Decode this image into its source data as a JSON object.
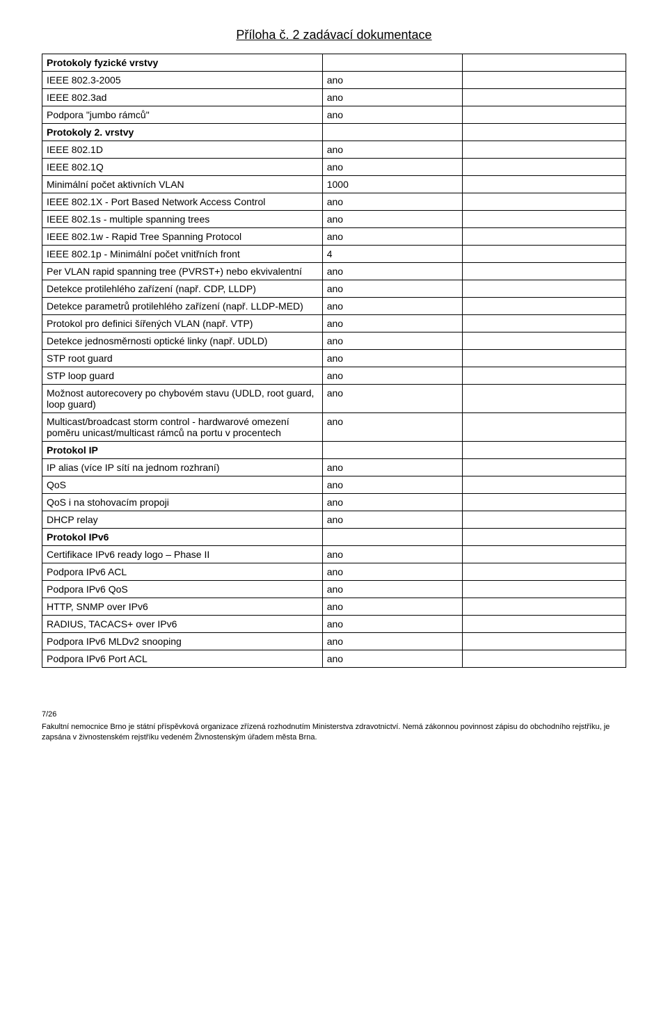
{
  "title": "Příloha č. 2 zadávací dokumentace",
  "table": {
    "col_widths": [
      "48%",
      "24%",
      "28%"
    ],
    "rows": [
      {
        "section": true,
        "c1": "Protokoly fyzické vrstvy",
        "c2": "",
        "c3": ""
      },
      {
        "c1": "IEEE 802.3-2005",
        "c2": "ano",
        "c3": ""
      },
      {
        "c1": "IEEE 802.3ad",
        "c2": "ano",
        "c3": ""
      },
      {
        "c1": "Podpora \"jumbo rámců\"",
        "c2": "ano",
        "c3": ""
      },
      {
        "section": true,
        "c1": "Protokoly 2. vrstvy",
        "c2": "",
        "c3": ""
      },
      {
        "c1": "IEEE 802.1D",
        "c2": "ano",
        "c3": ""
      },
      {
        "c1": "IEEE 802.1Q",
        "c2": "ano",
        "c3": ""
      },
      {
        "c1": "Minimální počet aktivních VLAN",
        "c2": "1000",
        "c3": ""
      },
      {
        "c1": "IEEE 802.1X - Port Based Network Access Control",
        "c2": "ano",
        "c3": ""
      },
      {
        "c1": "IEEE 802.1s - multiple spanning trees",
        "c2": "ano",
        "c3": ""
      },
      {
        "c1": "IEEE 802.1w - Rapid Tree Spanning Protocol",
        "c2": "ano",
        "c3": ""
      },
      {
        "c1": "IEEE 802.1p - Minimální počet vnitřních front",
        "c2": "4",
        "c3": ""
      },
      {
        "c1": "Per VLAN rapid spanning tree (PVRST+) nebo ekvivalentní",
        "c2": "ano",
        "c3": ""
      },
      {
        "c1": "Detekce protilehlého zařízení (např. CDP, LLDP)",
        "c2": "ano",
        "c3": ""
      },
      {
        "c1": "Detekce parametrů protilehlého zařízení (např. LLDP-MED)",
        "c2": "ano",
        "c3": ""
      },
      {
        "c1": "Protokol pro definici šířených VLAN (např. VTP)",
        "c2": "ano",
        "c3": ""
      },
      {
        "c1": "Detekce jednosměrnosti optické linky (např. UDLD)",
        "c2": "ano",
        "c3": ""
      },
      {
        "c1": "STP root guard",
        "c2": "ano",
        "c3": ""
      },
      {
        "c1": "STP loop guard",
        "c2": "ano",
        "c3": ""
      },
      {
        "c1": "Možnost autorecovery po chybovém stavu (UDLD, root guard, loop guard)",
        "c2": "ano",
        "c3": ""
      },
      {
        "c1": "Multicast/broadcast storm control - hardwarové omezení poměru unicast/multicast rámců na portu v procentech",
        "c2": "ano",
        "c3": ""
      },
      {
        "section": true,
        "c1": "Protokol IP",
        "c2": "",
        "c3": ""
      },
      {
        "c1": "IP alias (více IP sítí na jednom rozhraní)",
        "c2": "ano",
        "c3": ""
      },
      {
        "c1": "QoS",
        "c2": "ano",
        "c3": ""
      },
      {
        "c1": "QoS i na stohovacím propoji",
        "c2": "ano",
        "c3": ""
      },
      {
        "c1": "DHCP relay",
        "c2": "ano",
        "c3": ""
      },
      {
        "section": true,
        "c1": "Protokol IPv6",
        "c2": "",
        "c3": ""
      },
      {
        "c1": "Certifikace IPv6 ready logo – Phase II",
        "c2": "ano",
        "c3": ""
      },
      {
        "c1": "Podpora IPv6 ACL",
        "c2": "ano",
        "c3": ""
      },
      {
        "c1": "Podpora IPv6 QoS",
        "c2": "ano",
        "c3": ""
      },
      {
        "c1": "HTTP, SNMP over IPv6",
        "c2": "ano",
        "c3": ""
      },
      {
        "c1": "RADIUS, TACACS+ over IPv6",
        "c2": "ano",
        "c3": ""
      },
      {
        "c1": "Podpora IPv6 MLDv2 snooping",
        "c2": "ano",
        "c3": ""
      },
      {
        "c1": "Podpora IPv6 Port ACL",
        "c2": "ano",
        "c3": ""
      }
    ]
  },
  "footer": {
    "page": "7/26",
    "text": "Fakultní nemocnice Brno je státní příspěvková organizace zřízená rozhodnutím Ministerstva zdravotnictví. Nemá zákonnou povinnost zápisu do obchodního rejstříku, je zapsána v živnostenském rejstříku vedeném Živnostenským úřadem města Brna."
  }
}
